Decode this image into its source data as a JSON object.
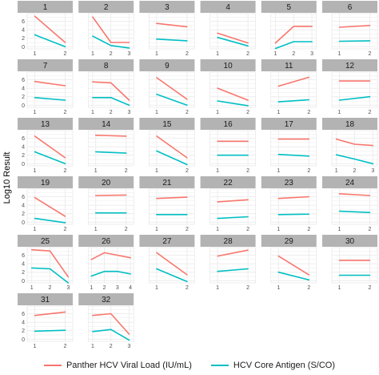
{
  "chart_data": {
    "type": "line",
    "facet_layout": "6 columns",
    "ylabel": "Log10 Result",
    "ylim": [
      -0.5,
      7.8
    ],
    "yticks": [
      0,
      2,
      4,
      6
    ],
    "grid": true,
    "legend_position": "bottom",
    "colors": {
      "Panther HCV Viral Load (IU/mL)": "#F8766D",
      "HCV Core Antigen (S/CO)": "#00BFC4",
      "strip": "#b3b3b3",
      "grid": "#ebebeb"
    },
    "series_names": [
      "Panther HCV Viral Load (IU/mL)",
      "HCV Core Antigen (S/CO)"
    ],
    "panels": [
      {
        "id": "1",
        "x": [
          1,
          2
        ],
        "viral_load": [
          7.2,
          1.0
        ],
        "core_antigen": [
          2.8,
          0.0
        ]
      },
      {
        "id": "2",
        "x": [
          1,
          2,
          3
        ],
        "viral_load": [
          7.0,
          1.0,
          1.0
        ],
        "core_antigen": [
          2.5,
          0.3,
          -0.3
        ]
      },
      {
        "id": "3",
        "x": [
          1,
          2
        ],
        "viral_load": [
          5.5,
          4.7
        ],
        "core_antigen": [
          1.8,
          1.4
        ]
      },
      {
        "id": "4",
        "x": [
          1,
          2
        ],
        "viral_load": [
          3.2,
          0.9
        ],
        "core_antigen": [
          2.2,
          0.2
        ]
      },
      {
        "id": "5",
        "x": [
          1,
          2,
          3
        ],
        "viral_load": [
          0.9,
          4.8,
          4.8
        ],
        "core_antigen": [
          -0.4,
          1.2,
          1.2
        ]
      },
      {
        "id": "6",
        "x": [
          1,
          2
        ],
        "viral_load": [
          4.6,
          5.0
        ],
        "core_antigen": [
          1.3,
          1.4
        ]
      },
      {
        "id": "7",
        "x": [
          1,
          2
        ],
        "viral_load": [
          5.6,
          4.6
        ],
        "core_antigen": [
          1.8,
          1.2
        ]
      },
      {
        "id": "8",
        "x": [
          1,
          2,
          3
        ],
        "viral_load": [
          5.5,
          5.3,
          1.2
        ],
        "core_antigen": [
          1.8,
          1.8,
          0.0
        ]
      },
      {
        "id": "9",
        "x": [
          1,
          2
        ],
        "viral_load": [
          6.5,
          1.4
        ],
        "core_antigen": [
          2.6,
          0.0
        ]
      },
      {
        "id": "10",
        "x": [
          1,
          2
        ],
        "viral_load": [
          4.0,
          1.2
        ],
        "core_antigen": [
          1.0,
          -0.1
        ]
      },
      {
        "id": "11",
        "x": [
          1,
          2
        ],
        "viral_load": [
          4.5,
          6.6
        ],
        "core_antigen": [
          0.8,
          1.3
        ]
      },
      {
        "id": "12",
        "x": [
          1,
          2
        ],
        "viral_load": [
          5.7,
          5.7
        ],
        "core_antigen": [
          1.2,
          2.0
        ]
      },
      {
        "id": "13",
        "x": [
          1,
          2
        ],
        "viral_load": [
          6.5,
          1.4
        ],
        "core_antigen": [
          2.8,
          0.0
        ]
      },
      {
        "id": "14",
        "x": [
          1,
          2
        ],
        "viral_load": [
          6.7,
          6.5
        ],
        "core_antigen": [
          2.8,
          2.5
        ]
      },
      {
        "id": "15",
        "x": [
          1,
          2
        ],
        "viral_load": [
          6.5,
          1.4
        ],
        "core_antigen": [
          3.0,
          -0.2
        ]
      },
      {
        "id": "16",
        "x": [
          1,
          2
        ],
        "viral_load": [
          5.3,
          5.3
        ],
        "core_antigen": [
          2.0,
          2.0
        ]
      },
      {
        "id": "17",
        "x": [
          1,
          2
        ],
        "viral_load": [
          5.8,
          5.8
        ],
        "core_antigen": [
          2.2,
          1.8
        ]
      },
      {
        "id": "18",
        "x": [
          1,
          2,
          3
        ],
        "viral_load": [
          5.8,
          4.6,
          4.3
        ],
        "core_antigen": [
          2.1,
          1.1,
          0.0
        ]
      },
      {
        "id": "19",
        "x": [
          1,
          2
        ],
        "viral_load": [
          5.8,
          1.4
        ],
        "core_antigen": [
          0.9,
          -0.1
        ]
      },
      {
        "id": "20",
        "x": [
          1,
          2
        ],
        "viral_load": [
          6.3,
          6.4
        ],
        "core_antigen": [
          2.2,
          2.2
        ]
      },
      {
        "id": "21",
        "x": [
          1,
          2
        ],
        "viral_load": [
          5.6,
          5.9
        ],
        "core_antigen": [
          1.8,
          1.8
        ]
      },
      {
        "id": "22",
        "x": [
          1,
          2
        ],
        "viral_load": [
          4.8,
          5.3
        ],
        "core_antigen": [
          0.9,
          1.3
        ]
      },
      {
        "id": "23",
        "x": [
          1,
          2
        ],
        "viral_load": [
          5.6,
          6.0
        ],
        "core_antigen": [
          1.8,
          1.9
        ]
      },
      {
        "id": "24",
        "x": [
          1,
          2
        ],
        "viral_load": [
          6.7,
          6.3
        ],
        "core_antigen": [
          2.6,
          2.3
        ]
      },
      {
        "id": "25",
        "x": [
          1,
          2,
          3
        ],
        "viral_load": [
          7.3,
          7.0,
          0.9
        ],
        "core_antigen": [
          3.0,
          2.8,
          -0.5
        ]
      },
      {
        "id": "26",
        "x": [
          1,
          2,
          3,
          4
        ],
        "viral_load": [
          5.0,
          6.6,
          6.0,
          5.4
        ],
        "core_antigen": [
          1.1,
          2.2,
          2.2,
          1.6
        ]
      },
      {
        "id": "27",
        "x": [
          1,
          2
        ],
        "viral_load": [
          6.6,
          1.4
        ],
        "core_antigen": [
          2.8,
          -0.2
        ]
      },
      {
        "id": "28",
        "x": [
          1,
          2
        ],
        "viral_load": [
          5.8,
          7.2
        ],
        "core_antigen": [
          2.2,
          2.8
        ]
      },
      {
        "id": "29",
        "x": [
          1,
          2
        ],
        "viral_load": [
          5.8,
          1.4
        ],
        "core_antigen": [
          2.0,
          0.2
        ]
      },
      {
        "id": "30",
        "x": [
          1,
          2
        ],
        "viral_load": [
          4.8,
          4.8
        ],
        "core_antigen": [
          1.3,
          1.3
        ]
      },
      {
        "id": "31",
        "x": [
          1,
          2
        ],
        "viral_load": [
          5.6,
          6.4
        ],
        "core_antigen": [
          1.9,
          2.1
        ]
      },
      {
        "id": "32",
        "x": [
          1,
          2,
          3
        ],
        "viral_load": [
          5.6,
          6.0,
          1.2
        ],
        "core_antigen": [
          1.8,
          2.3,
          -0.2
        ]
      }
    ]
  }
}
